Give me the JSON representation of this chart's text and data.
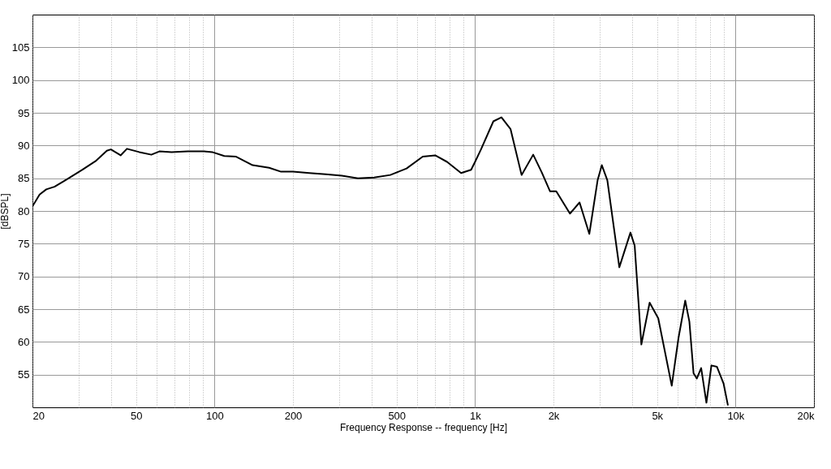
{
  "chart_data": {
    "type": "line",
    "xlabel": "Frequency Response -- frequency [Hz]",
    "ylabel": "[dBSPL]",
    "log": "x",
    "grid": true,
    "marker": "none",
    "line_style": "solid",
    "xlim": [
      20,
      20000
    ],
    "ylim": [
      50,
      110
    ],
    "xticks": [
      20,
      {
        "value": 30,
        "label": null
      },
      {
        "value": 40,
        "label": null
      },
      50,
      {
        "value": 60,
        "label": null
      },
      {
        "value": 70,
        "label": null
      },
      {
        "value": 80,
        "label": null
      },
      {
        "value": 90,
        "label": null
      },
      100,
      200,
      {
        "value": 300,
        "label": null
      },
      {
        "value": 400,
        "label": null
      },
      500,
      {
        "value": 600,
        "label": null
      },
      {
        "value": 700,
        "label": null
      },
      {
        "value": 800,
        "label": null
      },
      {
        "value": 900,
        "label": null
      },
      {
        "value": 1000,
        "label": "1k"
      },
      {
        "value": 2000,
        "label": "2k"
      },
      {
        "value": 3000,
        "label": null
      },
      {
        "value": 4000,
        "label": null
      },
      {
        "value": 5000,
        "label": "5k"
      },
      {
        "value": 6000,
        "label": null
      },
      {
        "value": 7000,
        "label": null
      },
      {
        "value": 8000,
        "label": null
      },
      {
        "value": 9000,
        "label": null
      },
      {
        "value": 10000,
        "label": "10k"
      },
      {
        "value": 20000,
        "label": "20k"
      }
    ],
    "yticks": [
      55,
      60,
      65,
      70,
      75,
      80,
      85,
      90,
      95,
      100,
      105
    ],
    "series": [
      {
        "color": "#000000",
        "x": [
          20,
          21.3,
          22.6,
          24.3,
          27,
          31.1,
          34.9,
          38.6,
          40,
          43.6,
          46.1,
          51.4,
          57.2,
          61.4,
          68.4,
          79,
          91.1,
          97.9,
          109,
          121,
          140,
          162,
          180,
          200,
          231,
          267,
          308,
          355,
          410,
          473,
          546,
          630,
          703,
          781,
          884,
          966,
          1000,
          1054,
          1176,
          1263,
          1369,
          1509,
          1672,
          1803,
          1941,
          2050,
          2314,
          2519,
          2746,
          2955,
          3067,
          3220,
          3580,
          3950,
          4100,
          4350,
          4680,
          5050,
          5690,
          6040,
          6410,
          6650,
          6900,
          7100,
          7380,
          7730,
          8080,
          8480,
          9000,
          9350
        ],
        "values": [
          80.7,
          82.5,
          83.3,
          83.7,
          84.8,
          86.3,
          87.6,
          89.2,
          89.4,
          88.5,
          89.5,
          89,
          88.6,
          89.1,
          89,
          89.1,
          89.1,
          89,
          88.4,
          88.3,
          87,
          86.6,
          86,
          86,
          85.8,
          85.6,
          85.4,
          85,
          85.1,
          85.5,
          86.5,
          88.3,
          88.5,
          87.5,
          85.8,
          86.3,
          87.5,
          89.4,
          93.7,
          94.3,
          92.5,
          85.5,
          88.6,
          85.9,
          83,
          83,
          79.6,
          81.3,
          76.5,
          84.7,
          87,
          84.7,
          71.4,
          76.7,
          74.7,
          59.6,
          66,
          63.6,
          53.3,
          60.6,
          66.3,
          63.1,
          55.2,
          54.4,
          56,
          50.7,
          56.4,
          56.2,
          53.6,
          50.3
        ]
      }
    ]
  }
}
